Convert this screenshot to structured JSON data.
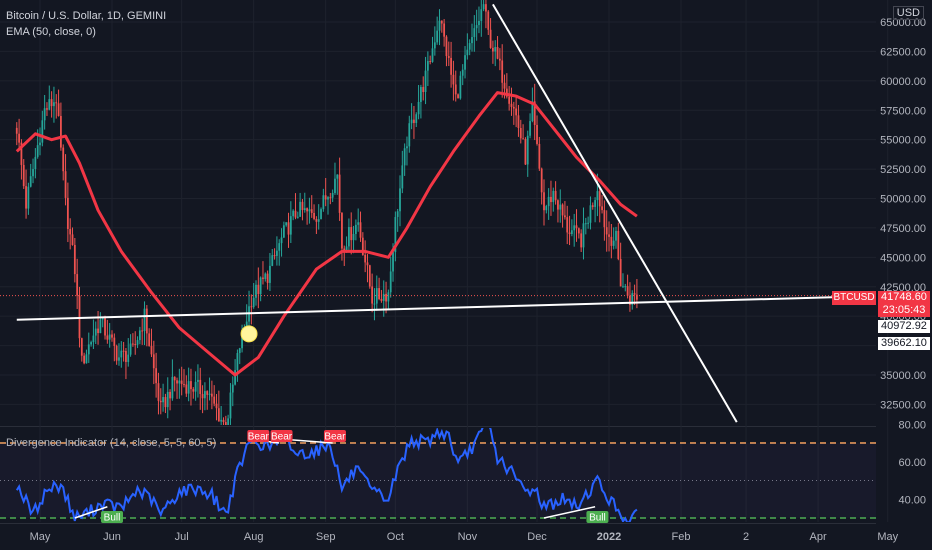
{
  "header": {
    "symbol_line": "Bitcoin / U.S. Dollar, 1D, GEMINI",
    "ema_line": "EMA (50, close, 0)",
    "currency": "USD"
  },
  "oscillator": {
    "title": "Divergence Indicator (14, close, 5, 5, 60, 5)"
  },
  "price_tags": {
    "symbol": "BTCUSD",
    "last": "41748.60",
    "countdown": "23:05:43",
    "level1": "40972.92",
    "level2": "39662.10"
  },
  "colors": {
    "background": "#131722",
    "up": "#26a69a",
    "down": "#ef5350",
    "ema": "#f23645",
    "osc_line": "#2962ff",
    "bear": "#f23645",
    "bull": "#4caf50",
    "level_upper": "#f7a35c",
    "level_lower": "#4caf50"
  },
  "chart_data": [
    {
      "type": "candlestick",
      "title": "Bitcoin / U.S. Dollar, 1D, GEMINI",
      "x_ticks": [
        "May",
        "Jun",
        "Jul",
        "Aug",
        "Sep",
        "Oct",
        "Nov",
        "Dec",
        "2022",
        "Feb",
        "2",
        "Apr",
        "May"
      ],
      "y_ticks": [
        32500,
        35000,
        37500,
        40000,
        42500,
        45000,
        47500,
        50000,
        52500,
        55000,
        57500,
        60000,
        62500,
        65000
      ],
      "ylim": [
        30500,
        66200
      ],
      "price_path": [
        {
          "date": "2021-04-21",
          "price": 56000
        },
        {
          "date": "2021-04-25",
          "price": 49500
        },
        {
          "date": "2021-05-03",
          "price": 57500
        },
        {
          "date": "2021-05-08",
          "price": 58500
        },
        {
          "date": "2021-05-12",
          "price": 49500
        },
        {
          "date": "2021-05-16",
          "price": 44000
        },
        {
          "date": "2021-05-19",
          "price": 36000
        },
        {
          "date": "2021-05-24",
          "price": 38500
        },
        {
          "date": "2021-05-27",
          "price": 39500
        },
        {
          "date": "2021-06-04",
          "price": 36500
        },
        {
          "date": "2021-06-10",
          "price": 37000
        },
        {
          "date": "2021-06-15",
          "price": 40000
        },
        {
          "date": "2021-06-22",
          "price": 32000
        },
        {
          "date": "2021-06-28",
          "price": 34500
        },
        {
          "date": "2021-07-06",
          "price": 34000
        },
        {
          "date": "2021-07-12",
          "price": 33500
        },
        {
          "date": "2021-07-20",
          "price": 30500
        },
        {
          "date": "2021-07-26",
          "price": 37500
        },
        {
          "date": "2021-07-31",
          "price": 41500
        },
        {
          "date": "2021-08-07",
          "price": 43500
        },
        {
          "date": "2021-08-14",
          "price": 47000
        },
        {
          "date": "2021-08-20",
          "price": 49000
        },
        {
          "date": "2021-08-28",
          "price": 48500
        },
        {
          "date": "2021-09-06",
          "price": 52000
        },
        {
          "date": "2021-09-08",
          "price": 46000
        },
        {
          "date": "2021-09-15",
          "price": 48000
        },
        {
          "date": "2021-09-21",
          "price": 41500
        },
        {
          "date": "2021-09-28",
          "price": 42000
        },
        {
          "date": "2021-10-01",
          "price": 48000
        },
        {
          "date": "2021-10-06",
          "price": 55000
        },
        {
          "date": "2021-10-15",
          "price": 61000
        },
        {
          "date": "2021-10-20",
          "price": 65500
        },
        {
          "date": "2021-10-27",
          "price": 58500
        },
        {
          "date": "2021-10-31",
          "price": 61500
        },
        {
          "date": "2021-11-08",
          "price": 66500
        },
        {
          "date": "2021-11-10",
          "price": 64000
        },
        {
          "date": "2021-11-16",
          "price": 60500
        },
        {
          "date": "2021-11-22",
          "price": 57000
        },
        {
          "date": "2021-11-26",
          "price": 53500
        },
        {
          "date": "2021-11-29",
          "price": 57500
        },
        {
          "date": "2021-12-04",
          "price": 49000
        },
        {
          "date": "2021-12-08",
          "price": 50500
        },
        {
          "date": "2021-12-14",
          "price": 47500
        },
        {
          "date": "2021-12-20",
          "price": 46500
        },
        {
          "date": "2021-12-27",
          "price": 51000
        },
        {
          "date": "2021-12-31",
          "price": 47000
        },
        {
          "date": "2022-01-04",
          "price": 46500
        },
        {
          "date": "2022-01-06",
          "price": 43000
        },
        {
          "date": "2022-01-10",
          "price": 41500
        },
        {
          "date": "2022-01-13",
          "price": 41749
        }
      ],
      "ema_50": [
        {
          "date": "2021-04-21",
          "price": 54000
        },
        {
          "date": "2021-04-29",
          "price": 55500
        },
        {
          "date": "2021-05-06",
          "price": 55000
        },
        {
          "date": "2021-05-12",
          "price": 55300
        },
        {
          "date": "2021-05-18",
          "price": 53000
        },
        {
          "date": "2021-05-26",
          "price": 49000
        },
        {
          "date": "2021-06-05",
          "price": 45500
        },
        {
          "date": "2021-06-18",
          "price": 42000
        },
        {
          "date": "2021-06-30",
          "price": 39000
        },
        {
          "date": "2021-07-12",
          "price": 37000
        },
        {
          "date": "2021-07-24",
          "price": 35000
        },
        {
          "date": "2021-08-03",
          "price": 36500
        },
        {
          "date": "2021-08-14",
          "price": 40000
        },
        {
          "date": "2021-08-28",
          "price": 44000
        },
        {
          "date": "2021-09-08",
          "price": 45500
        },
        {
          "date": "2021-09-18",
          "price": 45500
        },
        {
          "date": "2021-09-28",
          "price": 45000
        },
        {
          "date": "2021-10-06",
          "price": 47500
        },
        {
          "date": "2021-10-16",
          "price": 51000
        },
        {
          "date": "2021-10-26",
          "price": 54000
        },
        {
          "date": "2021-11-06",
          "price": 57000
        },
        {
          "date": "2021-11-14",
          "price": 59000
        },
        {
          "date": "2021-11-22",
          "price": 58700
        },
        {
          "date": "2021-11-30",
          "price": 58000
        },
        {
          "date": "2021-12-08",
          "price": 56000
        },
        {
          "date": "2021-12-18",
          "price": 53500
        },
        {
          "date": "2021-12-28",
          "price": 51500
        },
        {
          "date": "2022-01-06",
          "price": 49500
        },
        {
          "date": "2022-01-13",
          "price": 48500
        }
      ],
      "trendlines": [
        {
          "name": "support",
          "from": {
            "date": "2021-04-21",
            "price": 39700
          },
          "to": {
            "date": "2022-05-31",
            "price": 41900
          }
        },
        {
          "name": "downtrend",
          "from": {
            "date": "2021-11-12",
            "price": 66500
          },
          "to": {
            "date": "2022-02-25",
            "price": 31000
          }
        }
      ],
      "markers": [
        {
          "name": "highlight-circle",
          "date": "2021-07-30",
          "price": 38500
        }
      ],
      "horizontal_level": {
        "price": 41749,
        "style": "dotted"
      }
    },
    {
      "type": "line",
      "title": "Divergence Indicator (14, close, 5, 5, 60, 5)",
      "y_ticks": [
        40,
        60,
        80
      ],
      "ylim": [
        26,
        81
      ],
      "levels": [
        30,
        50,
        70
      ],
      "rsi_path": [
        {
          "date": "2021-04-21",
          "value": 48
        },
        {
          "date": "2021-04-28",
          "value": 32
        },
        {
          "date": "2021-05-04",
          "value": 45
        },
        {
          "date": "2021-05-10",
          "value": 48
        },
        {
          "date": "2021-05-16",
          "value": 30
        },
        {
          "date": "2021-05-22",
          "value": 33
        },
        {
          "date": "2021-05-28",
          "value": 38
        },
        {
          "date": "2021-06-05",
          "value": 35
        },
        {
          "date": "2021-06-12",
          "value": 45
        },
        {
          "date": "2021-06-18",
          "value": 40
        },
        {
          "date": "2021-06-22",
          "value": 32
        },
        {
          "date": "2021-06-30",
          "value": 44
        },
        {
          "date": "2021-07-08",
          "value": 46
        },
        {
          "date": "2021-07-14",
          "value": 42
        },
        {
          "date": "2021-07-20",
          "value": 32
        },
        {
          "date": "2021-07-26",
          "value": 58
        },
        {
          "date": "2021-07-31",
          "value": 72
        },
        {
          "date": "2021-08-07",
          "value": 68
        },
        {
          "date": "2021-08-14",
          "value": 72
        },
        {
          "date": "2021-08-20",
          "value": 64
        },
        {
          "date": "2021-08-28",
          "value": 66
        },
        {
          "date": "2021-09-03",
          "value": 70
        },
        {
          "date": "2021-09-08",
          "value": 46
        },
        {
          "date": "2021-09-14",
          "value": 56
        },
        {
          "date": "2021-09-21",
          "value": 44
        },
        {
          "date": "2021-09-28",
          "value": 40
        },
        {
          "date": "2021-10-02",
          "value": 56
        },
        {
          "date": "2021-10-08",
          "value": 72
        },
        {
          "date": "2021-10-14",
          "value": 70
        },
        {
          "date": "2021-10-20",
          "value": 76
        },
        {
          "date": "2021-10-24",
          "value": 74
        },
        {
          "date": "2021-10-28",
          "value": 58
        },
        {
          "date": "2021-11-02",
          "value": 66
        },
        {
          "date": "2021-11-10",
          "value": 80
        },
        {
          "date": "2021-11-14",
          "value": 62
        },
        {
          "date": "2021-11-19",
          "value": 56
        },
        {
          "date": "2021-11-26",
          "value": 44
        },
        {
          "date": "2021-11-30",
          "value": 46
        },
        {
          "date": "2021-12-04",
          "value": 36
        },
        {
          "date": "2021-12-12",
          "value": 40
        },
        {
          "date": "2021-12-18",
          "value": 36
        },
        {
          "date": "2021-12-27",
          "value": 50
        },
        {
          "date": "2021-12-31",
          "value": 42
        },
        {
          "date": "2022-01-06",
          "value": 32
        },
        {
          "date": "2022-01-10",
          "value": 29
        },
        {
          "date": "2022-01-13",
          "value": 31
        }
      ],
      "signals": [
        {
          "label": "Bear",
          "date": "2021-08-03"
        },
        {
          "label": "Bear",
          "date": "2021-08-13"
        },
        {
          "label": "Bear",
          "date": "2021-09-05"
        },
        {
          "label": "Bull",
          "date": "2021-06-01"
        },
        {
          "label": "Bull",
          "date": "2021-12-27"
        }
      ],
      "divergence_lines": [
        {
          "type": "bear",
          "from": {
            "date": "2021-07-31",
            "value": 72
          },
          "to": {
            "date": "2021-08-12",
            "value": 70
          }
        },
        {
          "type": "bear",
          "from": {
            "date": "2021-08-14",
            "value": 72
          },
          "to": {
            "date": "2021-09-04",
            "value": 70
          }
        },
        {
          "type": "bull",
          "from": {
            "date": "2021-05-16",
            "value": 30
          },
          "to": {
            "date": "2021-05-30",
            "value": 36
          }
        },
        {
          "type": "bull",
          "from": {
            "date": "2021-12-04",
            "value": 30
          },
          "to": {
            "date": "2021-12-26",
            "value": 36
          }
        }
      ]
    }
  ]
}
